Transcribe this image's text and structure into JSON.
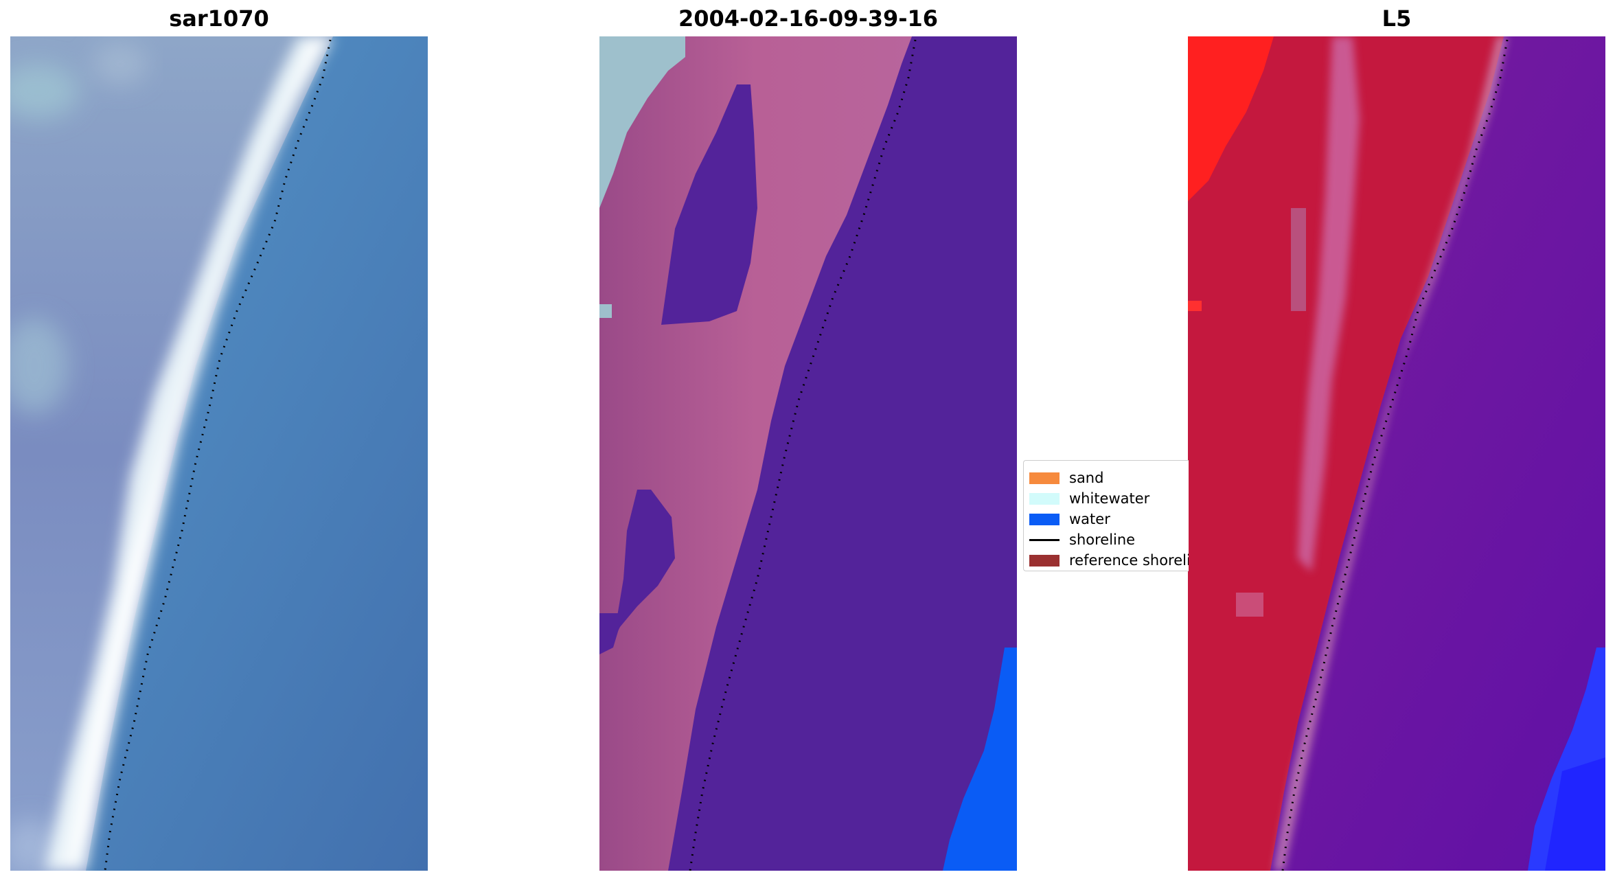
{
  "panels": [
    {
      "title": "sar1070"
    },
    {
      "title": "2004-02-16-09-39-16"
    },
    {
      "title": "L5"
    }
  ],
  "legend": {
    "items": [
      {
        "label": "sand",
        "color": "#f68a3d",
        "kind": "patch"
      },
      {
        "label": "whitewater",
        "color": "#d2fbfb",
        "kind": "patch"
      },
      {
        "label": "water",
        "color": "#0a5cf5",
        "kind": "patch"
      },
      {
        "label": "shoreline",
        "color": "#000000",
        "kind": "line"
      },
      {
        "label": "reference shoreline",
        "color": "#9a3030",
        "kind": "patch"
      }
    ]
  },
  "colors": {
    "sar_water": "#4a86bd",
    "sar_land": "#7b8cc0",
    "sar_whitewater": "#e8f4f8",
    "class_land": "#8a3f7f",
    "class_land_light": "#b8649a",
    "class_water": "#53239a",
    "class_whitewater": "#9ec0cc",
    "class_blue": "#0a5cf5",
    "l5_red": "#c4183e",
    "l5_bright_red": "#ff1a1a",
    "l5_purple": "#6a16a0",
    "l5_pink": "#c87aa6",
    "l5_blue": "#1f28ff"
  }
}
